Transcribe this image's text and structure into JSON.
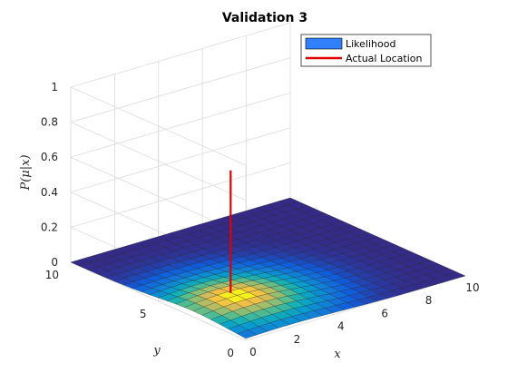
{
  "chart_data": {
    "type": "surface",
    "title": "Validation 3",
    "xlabel": "x",
    "ylabel": "y",
    "zlabel": "P(μ|x)",
    "xlim": [
      0,
      10
    ],
    "ylim": [
      0,
      10
    ],
    "zlim": [
      0,
      1
    ],
    "x_ticks": [
      "0",
      "2",
      "4",
      "6",
      "8",
      "10"
    ],
    "y_ticks": [
      "0",
      "5",
      "10"
    ],
    "z_ticks": [
      "0",
      "0.2",
      "0.4",
      "0.6",
      "0.8",
      "1"
    ],
    "grid": true,
    "legend_position": "top-right",
    "series": [
      {
        "name": "Likelihood",
        "kind": "surface",
        "grid_x": [
          0,
          0.5,
          1,
          1.5,
          2,
          2.5,
          3,
          3.5,
          4,
          4.5,
          5,
          5.5,
          6,
          6.5,
          7,
          7.5,
          8,
          8.5,
          9,
          9.5,
          10
        ],
        "grid_y": [
          0,
          0.5,
          1,
          1.5,
          2,
          2.5,
          3,
          3.5,
          4,
          4.5,
          5,
          5.5,
          6,
          6.5,
          7,
          7.5,
          8,
          8.5,
          9,
          9.5,
          10
        ],
        "peak": {
          "x": 2,
          "y": 3,
          "z": 0.05
        },
        "z_range": [
          0,
          0.05
        ],
        "color": "#2f7fff"
      },
      {
        "name": "Actual Location",
        "kind": "line3d",
        "points": [
          {
            "x": 2.5,
            "y": 4,
            "z": 0
          },
          {
            "x": 2.5,
            "y": 4,
            "z": 0.7
          }
        ],
        "color": "#e00000"
      }
    ]
  }
}
